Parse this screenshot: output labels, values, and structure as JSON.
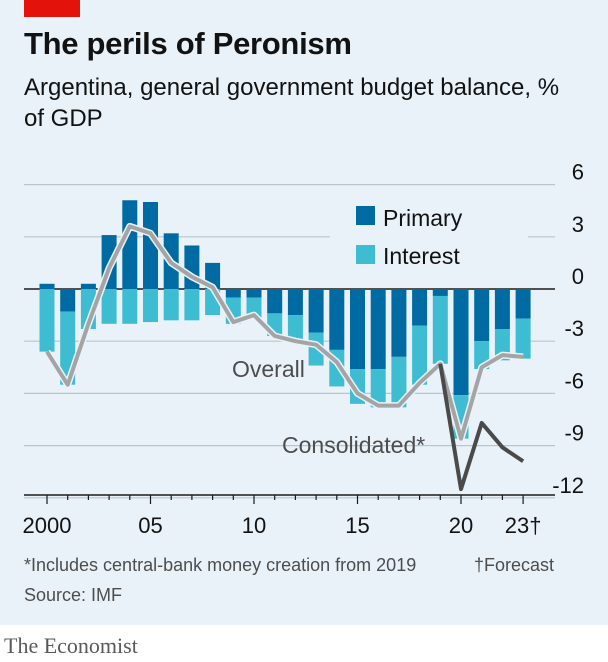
{
  "header": {
    "title": "The perils of Peronism",
    "subtitle": "Argentina, general government budget balance, % of GDP"
  },
  "footer": {
    "footnote": "*Includes central-bank money creation from 2019",
    "forecast_note": "†Forecast",
    "source": "Source: IMF",
    "brand": "The Economist"
  },
  "colors": {
    "panel": "#e9f2f8",
    "red": "#e3120b",
    "primary": "#006ba2",
    "interest": "#3ebcd2",
    "overall": "#a4a4a4",
    "consolidated": "#4a4a4a",
    "grid": "#b7c6cf",
    "text": "#121212"
  },
  "chart_data": {
    "type": "bar",
    "title": "The perils of Peronism",
    "subtitle": "Argentina, general government budget balance, % of GDP",
    "x_tick_labels": [
      "2000",
      "05",
      "10",
      "15",
      "20",
      "23†"
    ],
    "x_tick_years": [
      2000,
      2005,
      2010,
      2015,
      2020,
      2023
    ],
    "y_ticks": [
      6,
      3,
      0,
      -3,
      -6,
      -9,
      -12
    ],
    "ylim": [
      -12,
      6
    ],
    "grid": true,
    "legend_position": "top-right",
    "years": [
      2000,
      2001,
      2002,
      2003,
      2004,
      2005,
      2006,
      2007,
      2008,
      2009,
      2010,
      2011,
      2012,
      2013,
      2014,
      2015,
      2016,
      2017,
      2018,
      2019,
      2020,
      2021,
      2022,
      2023
    ],
    "series": [
      {
        "name": "Primary",
        "kind": "bar",
        "values": [
          0.3,
          -1.3,
          0.3,
          3.1,
          5.1,
          5.0,
          3.2,
          2.5,
          1.5,
          -0.5,
          -0.5,
          -1.4,
          -1.5,
          -2.5,
          -3.5,
          -4.6,
          -4.6,
          -3.9,
          -2.1,
          -0.4,
          -6.1,
          -3.0,
          -2.3,
          -1.7
        ]
      },
      {
        "name": "Interest",
        "kind": "bar",
        "values": [
          -3.6,
          -4.2,
          -2.3,
          -2.0,
          -2.0,
          -1.9,
          -1.8,
          -1.8,
          -1.5,
          -1.5,
          -1.2,
          -1.3,
          -1.6,
          -1.9,
          -2.1,
          -2.0,
          -2.2,
          -2.9,
          -3.4,
          -3.9,
          -2.5,
          -1.6,
          -1.8,
          -2.3
        ]
      },
      {
        "name": "Overall",
        "kind": "line",
        "values": [
          -3.6,
          -5.5,
          -2.0,
          1.2,
          3.6,
          3.2,
          1.5,
          0.7,
          0.1,
          -1.9,
          -1.5,
          -2.7,
          -3.0,
          -3.2,
          -4.2,
          -6.0,
          -6.7,
          -6.7,
          -5.4,
          -4.3,
          -8.6,
          -4.5,
          -3.8,
          -3.9
        ]
      },
      {
        "name": "Consolidated*",
        "kind": "line",
        "years": [
          2019,
          2020,
          2021,
          2022,
          2023
        ],
        "values": [
          -4.3,
          -11.5,
          -7.7,
          -9.1,
          -9.9
        ]
      }
    ],
    "legend": [
      "Primary",
      "Interest"
    ],
    "annotations": [
      "Overall",
      "Consolidated*"
    ]
  }
}
